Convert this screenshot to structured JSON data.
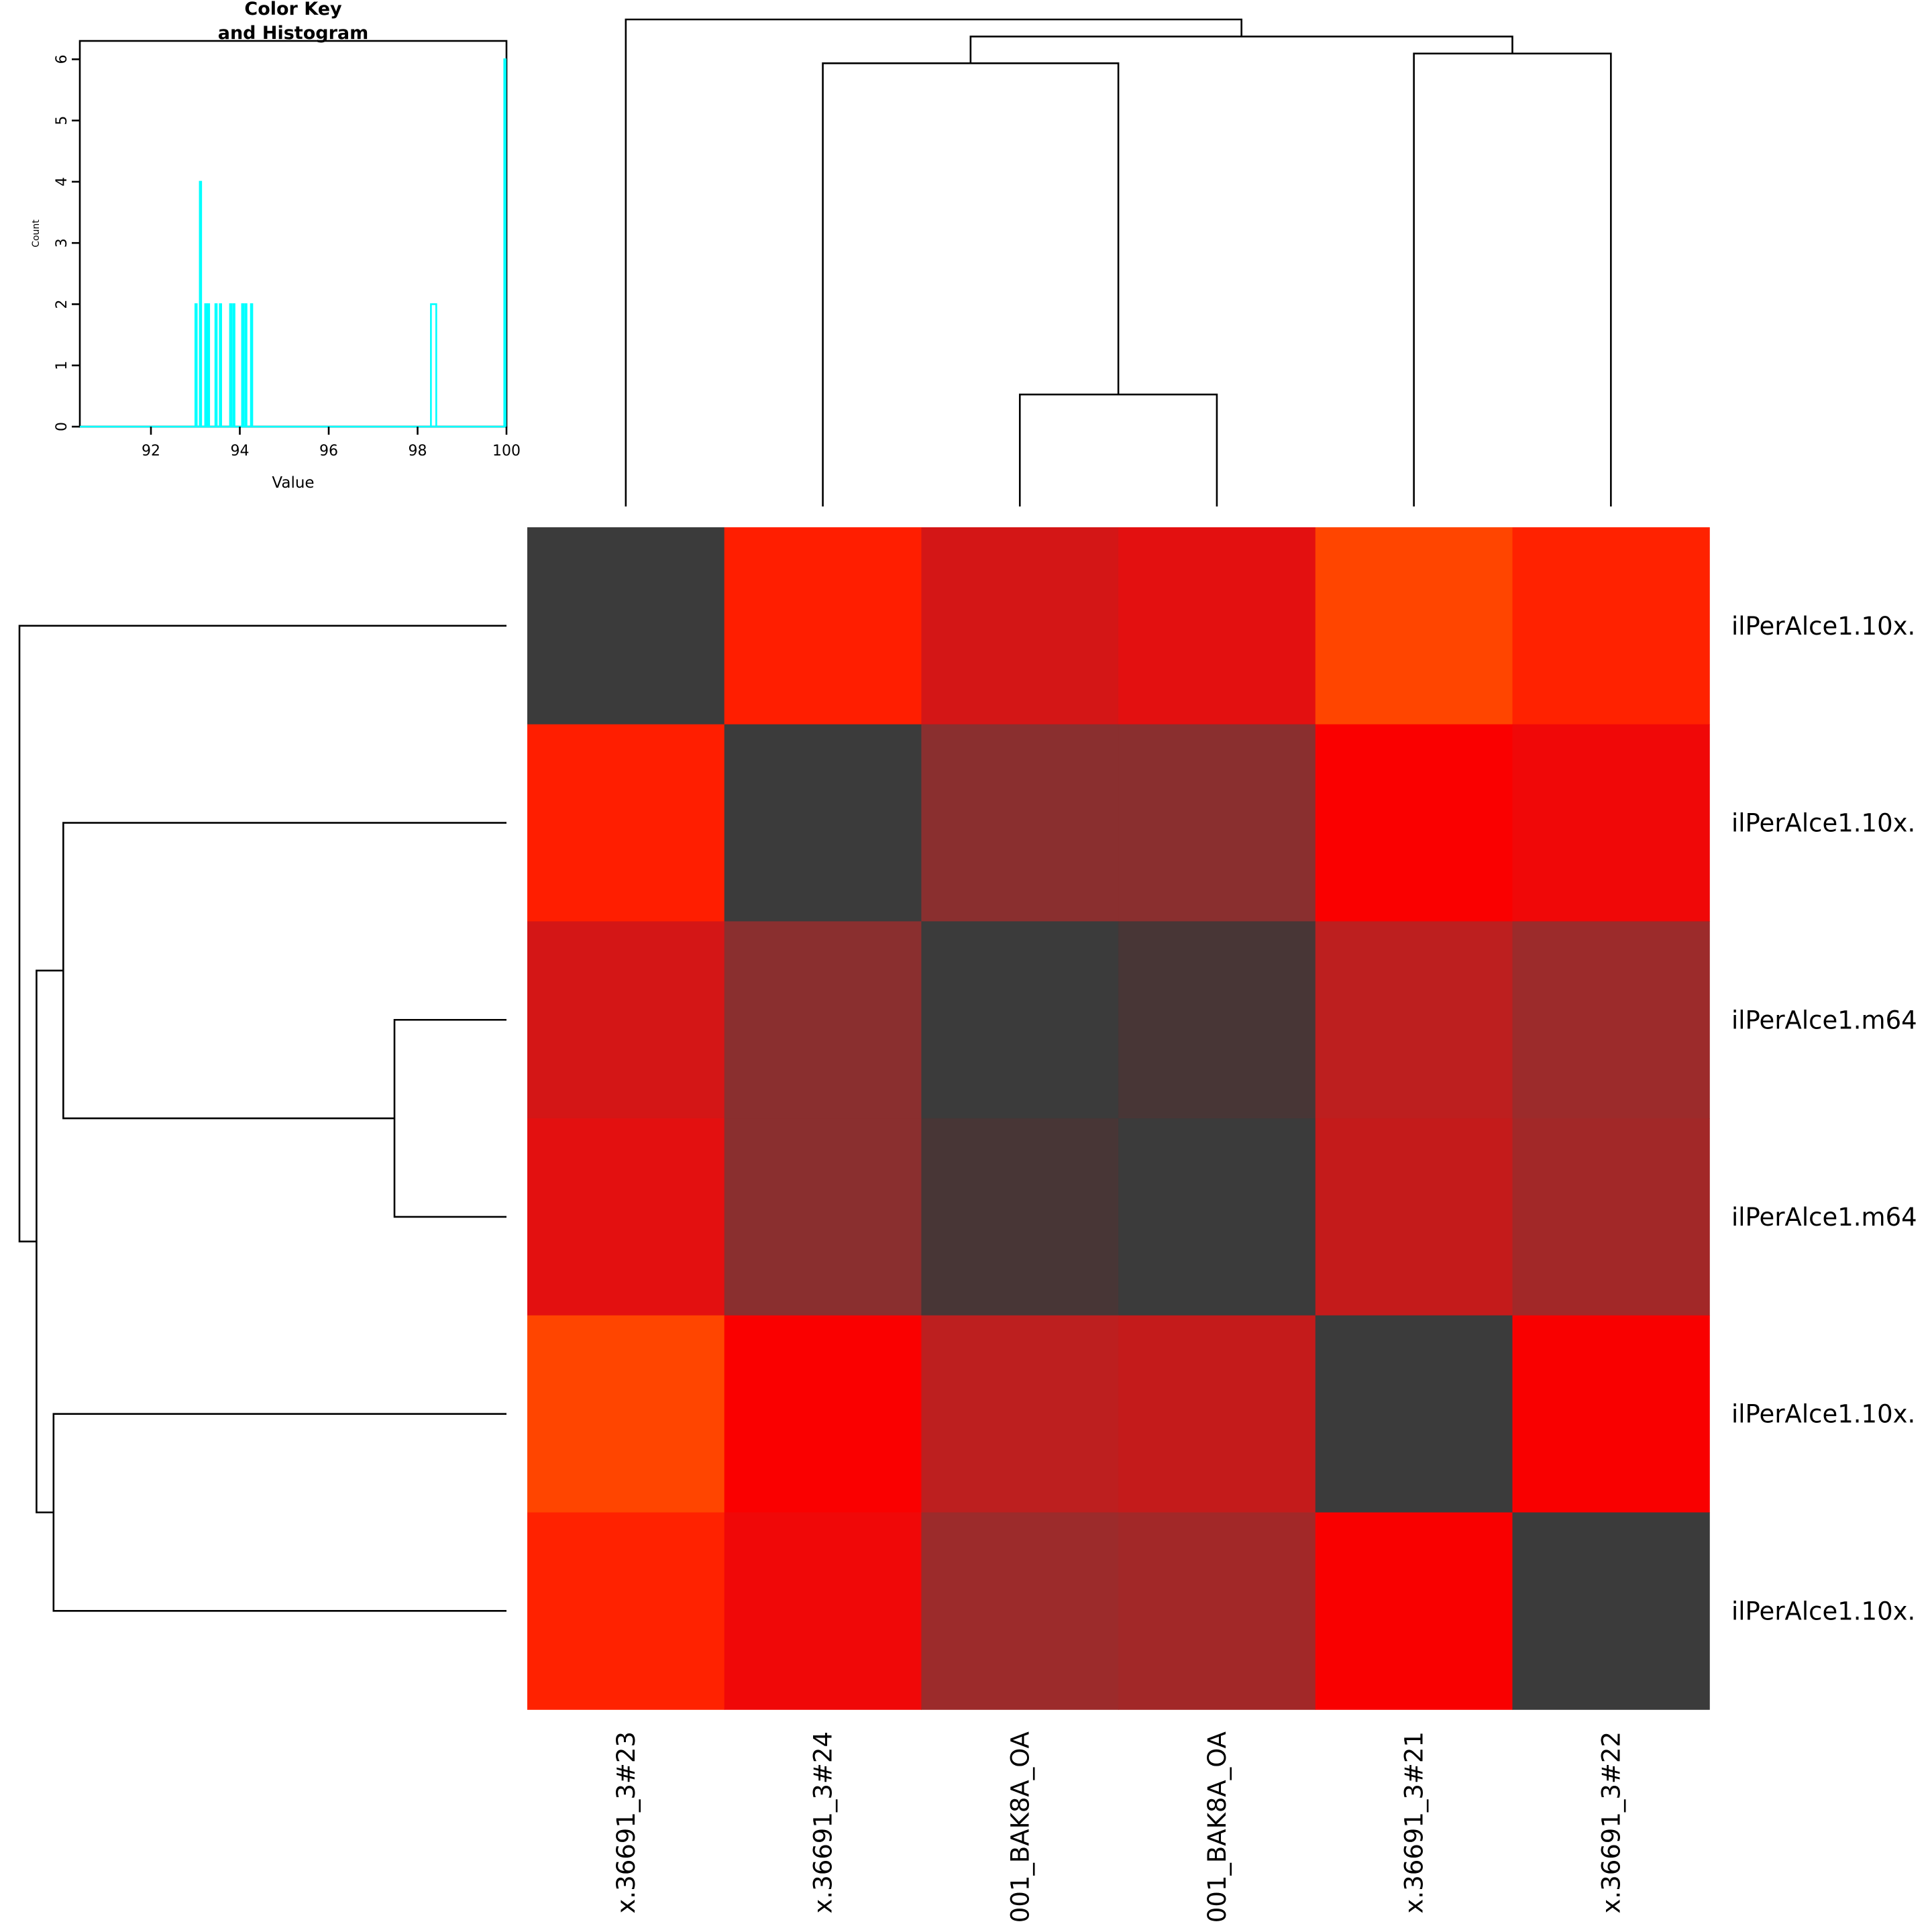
{
  "chart_data": [
    {
      "type": "heatmap",
      "row_labels": [
        "ilPerAlce1.10x.",
        "ilPerAlce1.10x.",
        "ilPerAlce1.m64",
        "ilPerAlce1.m64",
        "ilPerAlce1.10x.",
        "ilPerAlce1.10x."
      ],
      "col_labels": [
        "x.36691_3#23",
        "x.36691_3#24",
        "001_BAK8A_OA",
        "001_BAK8A_OA",
        "x.36691_3#21",
        "x.36691_3#22"
      ],
      "values": [
        [
          100,
          93.1,
          93.55,
          93.45,
          93.0,
          93.1
        ],
        [
          93.1,
          100,
          94.25,
          94.25,
          93.2,
          93.3
        ],
        [
          93.55,
          94.25,
          100,
          98.3,
          93.85,
          94.1
        ],
        [
          93.45,
          94.25,
          98.3,
          100,
          93.8,
          94.05
        ],
        [
          93.0,
          93.2,
          93.85,
          93.8,
          100,
          93.25
        ],
        [
          93.1,
          93.3,
          94.1,
          94.05,
          93.25,
          100
        ]
      ],
      "colors": [
        [
          "#3b3b3b",
          "#ff1e00",
          "#d41616",
          "#e31010",
          "#ff4500",
          "#ff2200"
        ],
        [
          "#ff1e00",
          "#3b3b3b",
          "#8a2f2f",
          "#8a2f2f",
          "#fa0000",
          "#f00808"
        ],
        [
          "#d41616",
          "#8a2f2f",
          "#3b3b3b",
          "#483636",
          "#bd1f1f",
          "#9c2b2b"
        ],
        [
          "#e31010",
          "#8a2f2f",
          "#483636",
          "#3b3b3b",
          "#c41b1b",
          "#a22828"
        ],
        [
          "#ff4500",
          "#fa0000",
          "#bd1f1f",
          "#c41b1b",
          "#3b3b3b",
          "#f90000"
        ],
        [
          "#ff2200",
          "#f00808",
          "#9c2b2b",
          "#a22828",
          "#f90000",
          "#3b3b3b"
        ]
      ],
      "dendrogram": {
        "merges": [
          {
            "left": [
              3
            ],
            "right": [
              4
            ],
            "height": 0.23
          },
          {
            "left": [
              2
            ],
            "right": [
              3,
              4
            ],
            "height": 0.91
          },
          {
            "left": [
              5
            ],
            "right": [
              6
            ],
            "height": 0.93
          },
          {
            "left": [
              2,
              3,
              4
            ],
            "right": [
              5,
              6
            ],
            "height": 0.965
          },
          {
            "left": [
              1
            ],
            "right": [
              2,
              3,
              4,
              5,
              6
            ],
            "height": 1.0
          }
        ]
      }
    },
    {
      "type": "bar",
      "title": "Color Key\nand Histogram",
      "title_lines": [
        "Color Key",
        "and Histogram"
      ],
      "xlabel": "Value",
      "ylabel": "Count",
      "xlim": [
        90.4,
        100
      ],
      "ylim": [
        0,
        6.3
      ],
      "xticks": [
        92,
        94,
        96,
        98,
        100
      ],
      "yticks": [
        0,
        1,
        2,
        3,
        4,
        5,
        6
      ],
      "line_color": "#00ffff",
      "bars": [
        {
          "x": 93.0,
          "count": 2
        },
        {
          "x": 93.1,
          "count": 4
        },
        {
          "x": 93.22,
          "count": 2
        },
        {
          "x": 93.28,
          "count": 2
        },
        {
          "x": 93.45,
          "count": 2
        },
        {
          "x": 93.55,
          "count": 2
        },
        {
          "x": 93.78,
          "count": 2
        },
        {
          "x": 93.85,
          "count": 2
        },
        {
          "x": 94.05,
          "count": 2
        },
        {
          "x": 94.12,
          "count": 2
        },
        {
          "x": 94.25,
          "count": 2
        },
        {
          "x": 98.3,
          "count": 2,
          "width": 0.12
        },
        {
          "x": 99.95,
          "count": 6
        }
      ]
    }
  ]
}
